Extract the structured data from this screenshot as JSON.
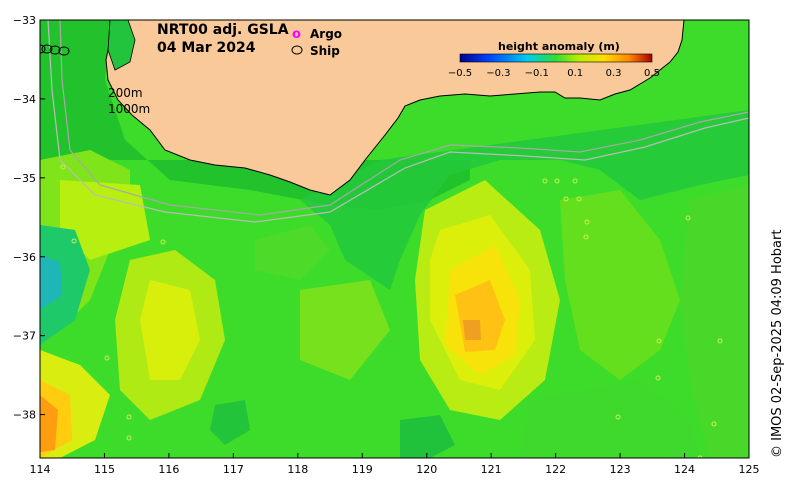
{
  "title": {
    "line1": "NRT00 adj. GSLA",
    "line2": "04 Mar 2024"
  },
  "legend": {
    "argo_symbol": "o",
    "argo_label": "Argo",
    "ship_label": "Ship"
  },
  "colorbar": {
    "title": "height anomaly (m)",
    "ticks": [
      "−0.5",
      "−0.3",
      "−0.1",
      "0.1",
      "0.3",
      "0.5"
    ]
  },
  "contours": {
    "label_200": "200m",
    "label_1000": "1000m"
  },
  "axes": {
    "x_ticks": [
      "114",
      "115",
      "116",
      "117",
      "118",
      "119",
      "120",
      "121",
      "122",
      "123",
      "124",
      "125"
    ],
    "y_ticks": [
      "−33",
      "−34",
      "−35",
      "−36",
      "−37",
      "−38"
    ],
    "lon_range": [
      114,
      125
    ],
    "lat_range": [
      -38.55,
      -33
    ]
  },
  "credit": "© IMOS 02-Sep-2025 04:09 Hobart",
  "colors": {
    "land": "#f9c99a",
    "ocean_base": "#33dd33",
    "argo": "#ff00ff",
    "contour": "#a0a0a0"
  }
}
